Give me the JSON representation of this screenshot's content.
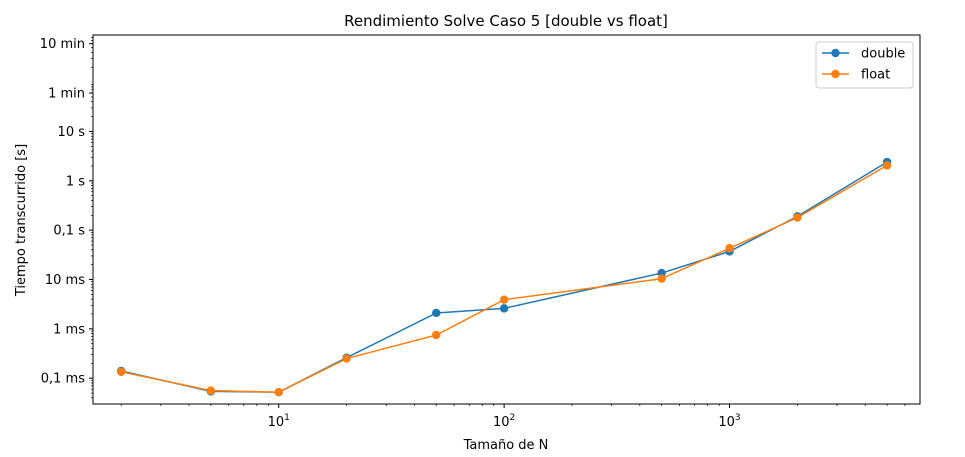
{
  "chart_data": {
    "type": "line",
    "title": "Rendimiento Solve Caso 5 [double vs float]",
    "xlabel": "Tamaño de N",
    "ylabel": "Tiempo transcurrido [s]",
    "xscale": "log",
    "yscale": "log",
    "xlim": [
      1.5,
      7000
    ],
    "ylim": [
      3e-05,
      900
    ],
    "xticks": [
      {
        "value": 10,
        "base": "10",
        "exp": "1"
      },
      {
        "value": 100,
        "base": "10",
        "exp": "2"
      },
      {
        "value": 1000,
        "base": "10",
        "exp": "3"
      }
    ],
    "yticks": [
      {
        "value": 0.0001,
        "label": "0,1 ms"
      },
      {
        "value": 0.001,
        "label": "1 ms"
      },
      {
        "value": 0.01,
        "label": "10 ms"
      },
      {
        "value": 0.1,
        "label": "0,1 s"
      },
      {
        "value": 1,
        "label": "1 s"
      },
      {
        "value": 10,
        "label": "10 s"
      },
      {
        "value": 60,
        "label": "1 min"
      },
      {
        "value": 600,
        "label": "10 min"
      }
    ],
    "grid": false,
    "legend_position": "top-right",
    "series": [
      {
        "name": "double",
        "color": "#1f77b4",
        "x": [
          2,
          5,
          10,
          20,
          50,
          100,
          500,
          1000,
          2000,
          5000
        ],
        "y": [
          0.00014,
          5.4e-05,
          5.2e-05,
          0.00026,
          0.0021,
          0.0026,
          0.0135,
          0.037,
          0.19,
          2.4
        ]
      },
      {
        "name": "float",
        "color": "#ff7f0e",
        "x": [
          2,
          5,
          10,
          20,
          50,
          100,
          500,
          1000,
          2000,
          5000
        ],
        "y": [
          0.000135,
          5.6e-05,
          5.2e-05,
          0.00025,
          0.00075,
          0.0039,
          0.0104,
          0.043,
          0.18,
          2.05
        ]
      }
    ]
  }
}
